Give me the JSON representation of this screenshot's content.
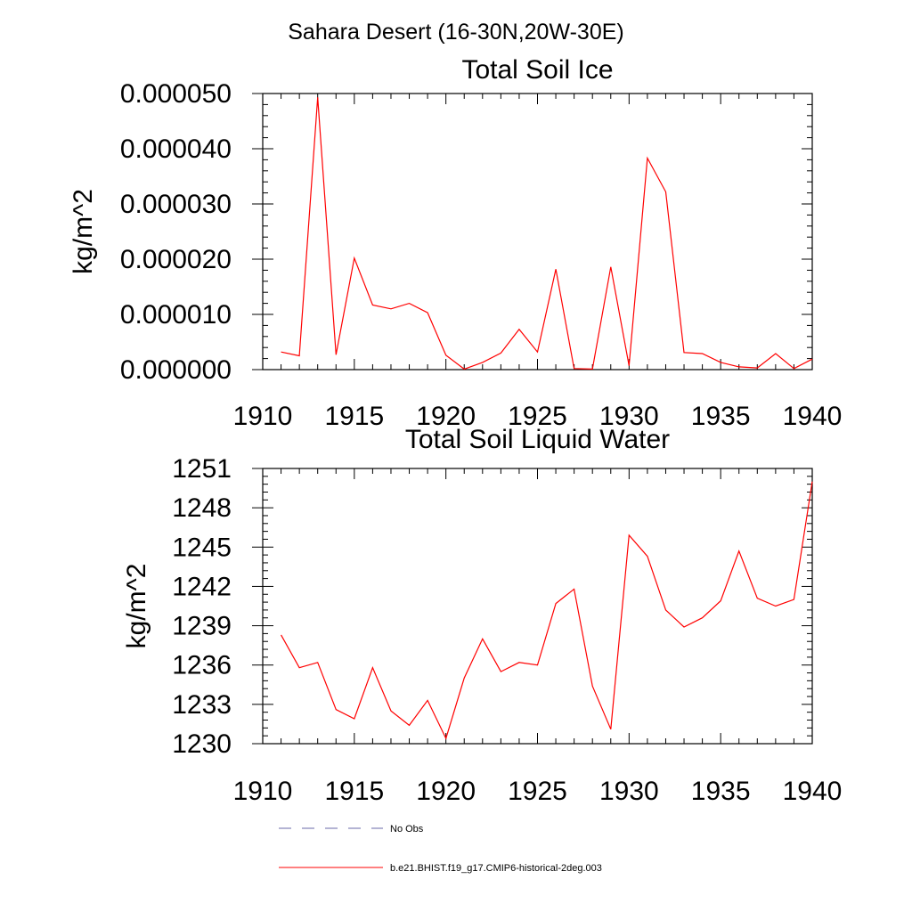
{
  "suptitle": "Sahara Desert (16-30N,20W-30E)",
  "colors": {
    "series": "#ff0000",
    "obs": "#6a6aa8"
  },
  "legend": {
    "entries": [
      {
        "label": "No Obs",
        "style": "dashed",
        "color": "#6a6aa8"
      },
      {
        "label": "b.e21.BHIST.f19_g17.CMIP6-historical-2deg.003",
        "style": "solid",
        "color": "#ff0000"
      }
    ]
  },
  "chart_data": [
    {
      "type": "line",
      "title": "Total Soil Ice",
      "ylabel": "kg/m^2",
      "xlim": [
        1910,
        1940
      ],
      "ylim": [
        0,
        5e-05
      ],
      "xticks": [
        1910,
        1915,
        1920,
        1925,
        1930,
        1935,
        1940
      ],
      "yticks": [
        0,
        1e-05,
        2e-05,
        3e-05,
        4e-05,
        5e-05
      ],
      "ytick_labels": [
        "0.000000",
        "0.000010",
        "0.000020",
        "0.000030",
        "0.000040",
        "0.000050"
      ],
      "x": [
        1911,
        1912,
        1913,
        1914,
        1915,
        1916,
        1917,
        1918,
        1919,
        1920,
        1921,
        1922,
        1923,
        1924,
        1925,
        1926,
        1927,
        1928,
        1929,
        1930,
        1931,
        1932,
        1933,
        1934,
        1935,
        1936,
        1937,
        1938,
        1939,
        1940
      ],
      "series": [
        {
          "values": [
            3.2e-06,
            2.5e-06,
            4.93e-05,
            2.7e-06,
            2.02e-05,
            1.17e-05,
            1.1e-05,
            1.2e-05,
            1.03e-05,
            2.6e-06,
            1e-07,
            1.3e-06,
            3e-06,
            7.3e-06,
            3.2e-06,
            1.82e-05,
            2e-07,
            1e-07,
            1.86e-05,
            7e-07,
            3.83e-05,
            3.22e-05,
            3.1e-06,
            2.9e-06,
            1.3e-06,
            5e-07,
            3e-07,
            2.9e-06,
            2e-07,
            1.9e-06
          ]
        }
      ]
    },
    {
      "type": "line",
      "title": "Total Soil Liquid Water",
      "ylabel": "kg/m^2",
      "xlim": [
        1910,
        1940
      ],
      "ylim": [
        1230,
        1251
      ],
      "xticks": [
        1910,
        1915,
        1920,
        1925,
        1930,
        1935,
        1940
      ],
      "yticks": [
        1230,
        1233,
        1236,
        1239,
        1242,
        1245,
        1248,
        1251
      ],
      "ytick_labels": [
        "1230",
        "1233",
        "1236",
        "1239",
        "1242",
        "1245",
        "1248",
        "1251"
      ],
      "x": [
        1911,
        1912,
        1913,
        1914,
        1915,
        1916,
        1917,
        1918,
        1919,
        1920,
        1921,
        1922,
        1923,
        1924,
        1925,
        1926,
        1927,
        1928,
        1929,
        1930,
        1931,
        1932,
        1933,
        1934,
        1935,
        1936,
        1937,
        1938,
        1939,
        1940
      ],
      "series": [
        {
          "values": [
            1238.3,
            1235.8,
            1236.2,
            1232.6,
            1231.9,
            1235.8,
            1232.5,
            1231.4,
            1233.3,
            1230.4,
            1235.0,
            1238.0,
            1235.5,
            1236.2,
            1236.0,
            1240.7,
            1241.8,
            1234.4,
            1231.1,
            1245.9,
            1244.3,
            1240.2,
            1238.9,
            1239.6,
            1240.9,
            1244.7,
            1241.1,
            1240.5,
            1241.0,
            1250.0
          ]
        }
      ]
    }
  ]
}
